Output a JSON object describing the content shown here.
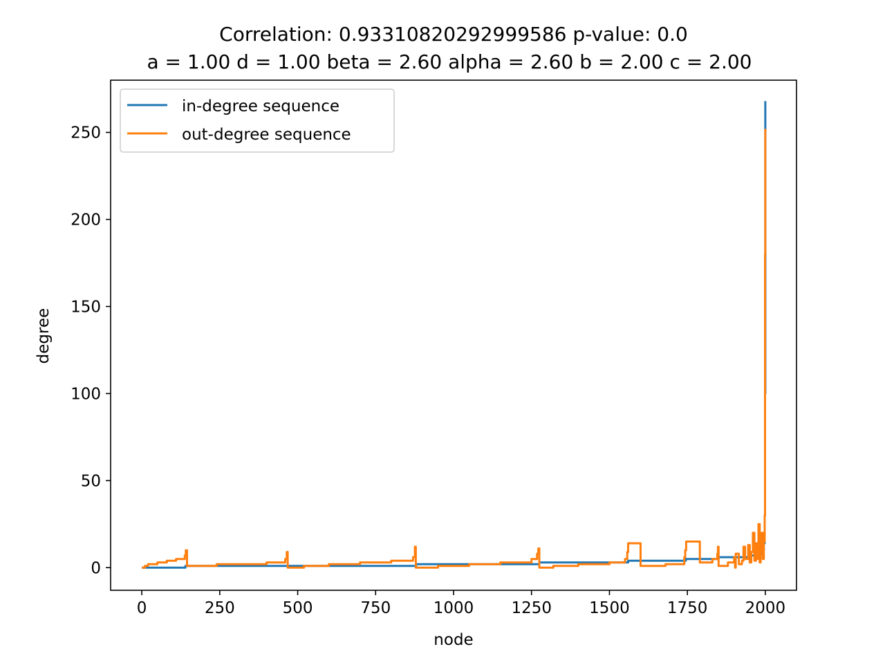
{
  "chart_data": {
    "type": "line",
    "title_line1": "Correlation: 0.93310820292999586 p-value: 0.0",
    "title_line2": "a = 1.00 d = 1.00 beta = 2.60 alpha = 2.60 b = 2.00 c = 2.00",
    "xlabel": "node",
    "ylabel": "degree",
    "xlim": [
      -100,
      2100
    ],
    "ylim": [
      -13,
      280
    ],
    "xticks": [
      0,
      250,
      500,
      750,
      1000,
      1250,
      1500,
      1750,
      2000
    ],
    "yticks": [
      0,
      50,
      100,
      150,
      200,
      250
    ],
    "legend_position": "upper-left",
    "colors": {
      "in_degree": "#1f77b4",
      "out_degree": "#ff7f0e"
    },
    "series": [
      {
        "name": "in-degree sequence",
        "x": [
          0,
          20,
          140,
          470,
          880,
          1275,
          1560,
          1745,
          1850,
          1900,
          1950,
          1980,
          1990,
          1995,
          1998,
          1999,
          2000
        ],
        "y": [
          0,
          0,
          1,
          1,
          2,
          3,
          4,
          5,
          6,
          6,
          7,
          8,
          10,
          14,
          30,
          100,
          268
        ]
      },
      {
        "name": "out-degree sequence",
        "x": [
          0,
          10,
          20,
          50,
          80,
          110,
          138,
          141,
          145,
          240,
          300,
          400,
          460,
          465,
          468,
          520,
          600,
          700,
          800,
          870,
          876,
          879,
          950,
          1050,
          1150,
          1250,
          1268,
          1272,
          1275,
          1320,
          1400,
          1500,
          1550,
          1557,
          1560,
          1600,
          1680,
          1740,
          1743,
          1746,
          1790,
          1830,
          1846,
          1848,
          1850,
          1880,
          1900,
          1903,
          1905,
          1915,
          1925,
          1930,
          1935,
          1945,
          1950,
          1955,
          1960,
          1965,
          1970,
          1975,
          1978,
          1982,
          1985,
          1988,
          1992,
          1995,
          1998,
          1999,
          2000
        ],
        "y": [
          0,
          1,
          2,
          3,
          4,
          5,
          7,
          10,
          1,
          2,
          2,
          3,
          5,
          9,
          0,
          1,
          2,
          3,
          4,
          6,
          12,
          0,
          1,
          2,
          3,
          5,
          8,
          11,
          0,
          1,
          2,
          3,
          5,
          9,
          14,
          1,
          2,
          6,
          10,
          15,
          3,
          5,
          8,
          12,
          1,
          3,
          6,
          0,
          8,
          2,
          4,
          12,
          5,
          13,
          3,
          9,
          20,
          4,
          14,
          5,
          25,
          3,
          10,
          20,
          5,
          15,
          30,
          180,
          252
        ]
      }
    ]
  }
}
